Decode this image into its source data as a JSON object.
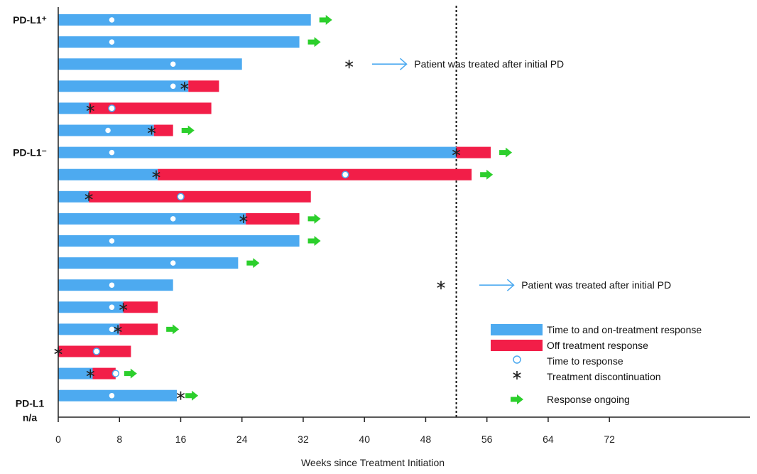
{
  "chart_data": {
    "type": "swimmer",
    "xlabel": "Weeks since Treatment Initiation",
    "xlim": [
      0,
      89
    ],
    "xticks": [
      0,
      8,
      16,
      24,
      32,
      40,
      48,
      56,
      64,
      72
    ],
    "reference_line_x": 52,
    "colors": {
      "on_treatment": "#4daaf0",
      "off_treatment": "#f21e48",
      "ongoing": "#2ccf2c",
      "response_marker_stroke": "#4daaf0",
      "discontinuation": "#222222"
    },
    "group_labels": [
      {
        "lines": [
          "PD-L1⁺"
        ],
        "row": 0
      },
      {
        "lines": [
          "PD-L1⁻"
        ],
        "row": 6
      },
      {
        "lines": [
          "PD-L1",
          "n/a"
        ],
        "row": 17.35
      }
    ],
    "patients": [
      {
        "on": 33,
        "off_end": null,
        "response": 7,
        "discontinuation": null,
        "ongoing": true
      },
      {
        "on": 31.5,
        "off_end": null,
        "response": 7,
        "discontinuation": null,
        "ongoing": true
      },
      {
        "on": 24,
        "off_end": null,
        "response": 15,
        "discontinuation": 38,
        "ongoing": false
      },
      {
        "on": 17,
        "off_end": 21,
        "response": 15,
        "discontinuation": 16.5,
        "ongoing": false
      },
      {
        "on": 4,
        "off_end": 20,
        "response": 7,
        "discontinuation": 4.2,
        "ongoing": false
      },
      {
        "on": 12.5,
        "off_end": 15,
        "response": 6.5,
        "discontinuation": 12.2,
        "ongoing": true
      },
      {
        "on": 52,
        "off_end": 56.5,
        "response": 7,
        "discontinuation": 52,
        "ongoing": true
      },
      {
        "on": 13,
        "off_end": 54,
        "response": 37.5,
        "discontinuation": 12.8,
        "ongoing": true
      },
      {
        "on": 4,
        "off_end": 33,
        "response": 16,
        "discontinuation": 4,
        "ongoing": false
      },
      {
        "on": 24.5,
        "off_end": 31.5,
        "response": 15,
        "discontinuation": 24.2,
        "ongoing": true
      },
      {
        "on": 31.5,
        "off_end": null,
        "response": 7,
        "discontinuation": null,
        "ongoing": true
      },
      {
        "on": 23.5,
        "off_end": null,
        "response": 15,
        "discontinuation": null,
        "ongoing": true
      },
      {
        "on": 15,
        "off_end": null,
        "response": 7,
        "discontinuation": 50,
        "ongoing": false
      },
      {
        "on": 8.5,
        "off_end": 13,
        "response": 7,
        "discontinuation": 8.5,
        "ongoing": false
      },
      {
        "on": 8,
        "off_end": 13,
        "response": 7,
        "discontinuation": 7.8,
        "ongoing": true
      },
      {
        "on": 0,
        "off_end": 9.5,
        "response": 5,
        "discontinuation": 0,
        "ongoing": false
      },
      {
        "on": 4.5,
        "off_end": 7.5,
        "response": 7.5,
        "discontinuation": 4.2,
        "ongoing": true
      },
      {
        "on": 15.5,
        "off_end": null,
        "response": 7,
        "discontinuation": 16,
        "ongoing": true
      }
    ],
    "annotations": [
      {
        "text": "Patient was treated after initial PD",
        "row": 2,
        "arrow_from": 41,
        "arrow_to": 45.5,
        "text_x": 46.5
      },
      {
        "text": "Patient was treated after initial PD",
        "row": 12,
        "arrow_from": 55,
        "arrow_to": 59.5,
        "text_x": 60.5
      }
    ],
    "legend": {
      "position": "bottom-right",
      "items": [
        {
          "kind": "on_bar",
          "label": "Time to and on-treatment response"
        },
        {
          "kind": "off_bar",
          "label": "Off treatment response"
        },
        {
          "kind": "response",
          "label": "Time to response"
        },
        {
          "kind": "discontinuation",
          "label": "Treatment discontinuation"
        },
        {
          "kind": "ongoing",
          "label": "Response ongoing"
        }
      ]
    }
  }
}
